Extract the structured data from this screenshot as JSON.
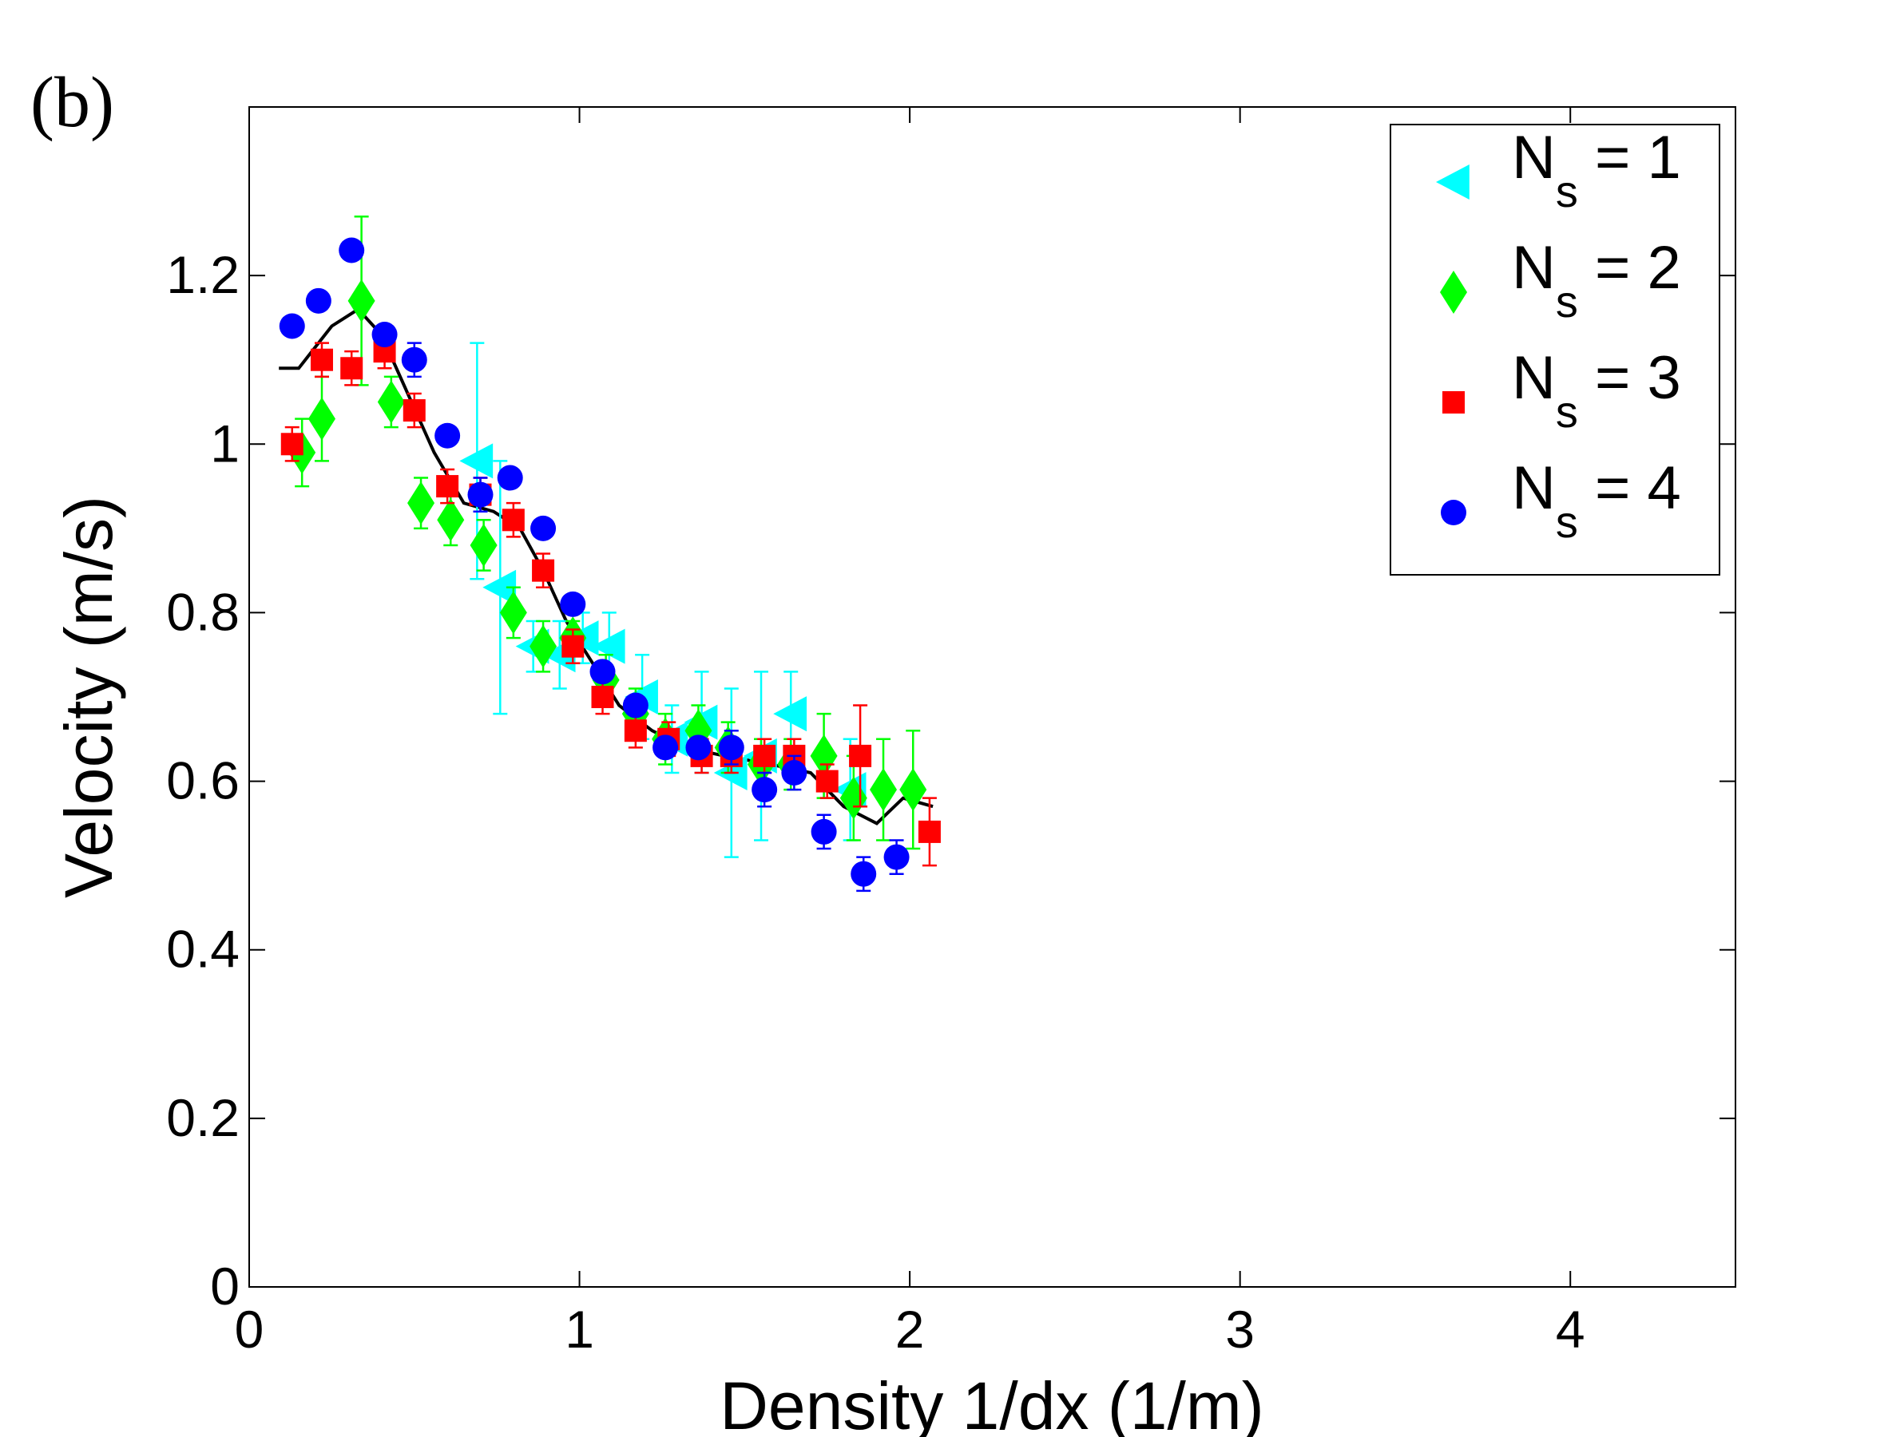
{
  "chart_data": {
    "type": "scatter",
    "panel_label": "(b)",
    "xlabel": "Density 1/dx (1/m)",
    "ylabel": "Velocity (m/s)",
    "xlim": [
      0,
      4.5
    ],
    "ylim": [
      0,
      1.4
    ],
    "xticks": [
      0,
      1,
      2,
      3,
      4
    ],
    "yticks": [
      0,
      0.2,
      0.4,
      0.6,
      0.8,
      1,
      1.2
    ],
    "xtick_labels": [
      "0",
      "1",
      "2",
      "3",
      "4"
    ],
    "ytick_labels": [
      "0",
      "0.2",
      "0.4",
      "0.6",
      "0.8",
      "1",
      "1.2"
    ],
    "legend_position": "top-right",
    "series": [
      {
        "name": "N_s = 1",
        "legend_main": "N",
        "legend_sub": "s",
        "legend_rest": " = 1",
        "marker": "triangle-left",
        "color": "#00ffff",
        "points": [
          [
            0.69,
            0.98,
            0.14
          ],
          [
            0.76,
            0.83,
            0.15
          ],
          [
            0.86,
            0.76,
            0.03
          ],
          [
            0.94,
            0.75,
            0.04
          ],
          [
            1.01,
            0.77,
            0.03
          ],
          [
            1.09,
            0.76,
            0.04
          ],
          [
            1.19,
            0.7,
            0.05
          ],
          [
            1.28,
            0.65,
            0.04
          ],
          [
            1.37,
            0.67,
            0.06
          ],
          [
            1.46,
            0.61,
            0.1
          ],
          [
            1.55,
            0.63,
            0.1
          ],
          [
            1.64,
            0.68,
            0.05
          ],
          [
            1.82,
            0.59,
            0.06
          ]
        ]
      },
      {
        "name": "N_s = 2",
        "legend_main": "N",
        "legend_sub": "s",
        "legend_rest": " = 2",
        "marker": "diamond",
        "color": "#00ff00",
        "points": [
          [
            0.16,
            0.99,
            0.04
          ],
          [
            0.22,
            1.03,
            0.05
          ],
          [
            0.34,
            1.17,
            0.1
          ],
          [
            0.43,
            1.05,
            0.03
          ],
          [
            0.52,
            0.93,
            0.03
          ],
          [
            0.61,
            0.91,
            0.03
          ],
          [
            0.71,
            0.88,
            0.03
          ],
          [
            0.8,
            0.8,
            0.03
          ],
          [
            0.89,
            0.76,
            0.03
          ],
          [
            0.98,
            0.77,
            0.02
          ],
          [
            1.08,
            0.72,
            0.03
          ],
          [
            1.17,
            0.68,
            0.03
          ],
          [
            1.26,
            0.65,
            0.03
          ],
          [
            1.36,
            0.66,
            0.03
          ],
          [
            1.45,
            0.64,
            0.03
          ],
          [
            1.55,
            0.62,
            0.03
          ],
          [
            1.64,
            0.62,
            0.03
          ],
          [
            1.74,
            0.63,
            0.05
          ],
          [
            1.83,
            0.58,
            0.05
          ],
          [
            1.92,
            0.59,
            0.06
          ],
          [
            2.01,
            0.59,
            0.07
          ]
        ]
      },
      {
        "name": "N_s = 3",
        "legend_main": "N",
        "legend_sub": "s",
        "legend_rest": " = 3",
        "marker": "square",
        "color": "#ff0000",
        "points": [
          [
            0.13,
            1.0,
            0.02
          ],
          [
            0.22,
            1.1,
            0.02
          ],
          [
            0.31,
            1.09,
            0.02
          ],
          [
            0.41,
            1.11,
            0.02
          ],
          [
            0.5,
            1.04,
            0.02
          ],
          [
            0.6,
            0.95,
            0.02
          ],
          [
            0.7,
            0.94,
            0.02
          ],
          [
            0.8,
            0.91,
            0.02
          ],
          [
            0.89,
            0.85,
            0.02
          ],
          [
            0.98,
            0.76,
            0.02
          ],
          [
            1.07,
            0.7,
            0.02
          ],
          [
            1.17,
            0.66,
            0.02
          ],
          [
            1.27,
            0.65,
            0.02
          ],
          [
            1.37,
            0.63,
            0.02
          ],
          [
            1.46,
            0.63,
            0.02
          ],
          [
            1.56,
            0.63,
            0.02
          ],
          [
            1.65,
            0.63,
            0.02
          ],
          [
            1.75,
            0.6,
            0.02
          ],
          [
            1.85,
            0.63,
            0.06
          ],
          [
            2.06,
            0.54,
            0.04
          ]
        ]
      },
      {
        "name": "N_s = 4",
        "legend_main": "N",
        "legend_sub": "s",
        "legend_rest": " = 4",
        "marker": "circle",
        "color": "#0000ff",
        "points": [
          [
            0.13,
            1.14,
            0.01
          ],
          [
            0.21,
            1.17,
            0.01
          ],
          [
            0.31,
            1.23,
            0.01
          ],
          [
            0.41,
            1.13,
            0.01
          ],
          [
            0.5,
            1.1,
            0.02
          ],
          [
            0.6,
            1.01,
            0.01
          ],
          [
            0.7,
            0.94,
            0.02
          ],
          [
            0.79,
            0.96,
            0.01
          ],
          [
            0.89,
            0.9,
            0.01
          ],
          [
            0.98,
            0.81,
            0.01
          ],
          [
            1.07,
            0.73,
            0.01
          ],
          [
            1.17,
            0.69,
            0.01
          ],
          [
            1.26,
            0.64,
            0.01
          ],
          [
            1.36,
            0.64,
            0.01
          ],
          [
            1.46,
            0.64,
            0.02
          ],
          [
            1.56,
            0.59,
            0.02
          ],
          [
            1.65,
            0.61,
            0.02
          ],
          [
            1.74,
            0.54,
            0.02
          ],
          [
            1.86,
            0.49,
            0.02
          ],
          [
            1.96,
            0.51,
            0.02
          ]
        ]
      }
    ],
    "reference_line": {
      "color": "#000000",
      "points": [
        [
          0.09,
          1.09
        ],
        [
          0.15,
          1.09
        ],
        [
          0.25,
          1.14
        ],
        [
          0.33,
          1.16
        ],
        [
          0.4,
          1.13
        ],
        [
          0.48,
          1.06
        ],
        [
          0.56,
          0.99
        ],
        [
          0.65,
          0.93
        ],
        [
          0.74,
          0.92
        ],
        [
          0.82,
          0.9
        ],
        [
          0.89,
          0.85
        ],
        [
          0.96,
          0.79
        ],
        [
          1.04,
          0.74
        ],
        [
          1.12,
          0.69
        ],
        [
          1.22,
          0.66
        ],
        [
          1.32,
          0.64
        ],
        [
          1.44,
          0.63
        ],
        [
          1.58,
          0.62
        ],
        [
          1.7,
          0.61
        ],
        [
          1.8,
          0.57
        ],
        [
          1.9,
          0.55
        ],
        [
          1.98,
          0.58
        ],
        [
          2.07,
          0.57
        ]
      ]
    }
  }
}
